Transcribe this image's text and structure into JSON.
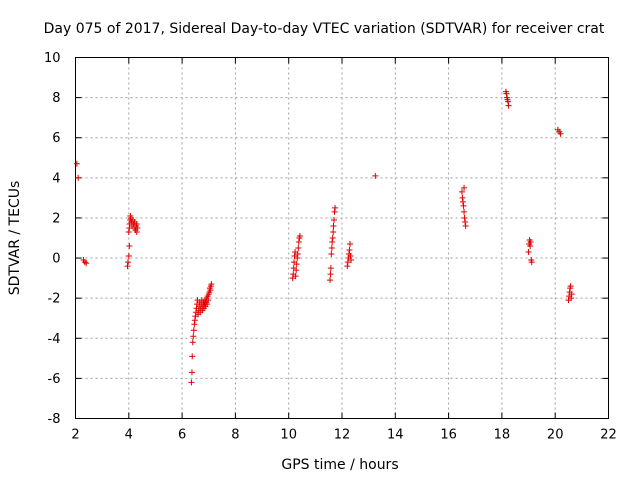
{
  "chart_data": {
    "type": "scatter",
    "title": "Day 075 of 2017, Sidereal Day-to-day VTEC variation (SDTVAR) for receiver crat",
    "xlabel": "GPS time / hours",
    "ylabel": "SDTVAR / TECUs",
    "xlim": [
      2,
      22
    ],
    "ylim": [
      -8,
      10
    ],
    "xticks": [
      2,
      4,
      6,
      8,
      10,
      12,
      14,
      16,
      18,
      20,
      22
    ],
    "yticks": [
      -8,
      -6,
      -4,
      -2,
      0,
      2,
      4,
      6,
      8,
      10
    ],
    "grid": true,
    "marker": "+",
    "series": [
      {
        "name": "SDTVAR",
        "color": "#e00000",
        "points": [
          [
            2.05,
            4.7
          ],
          [
            2.1,
            4.0
          ],
          [
            2.3,
            -0.1
          ],
          [
            2.35,
            -0.2
          ],
          [
            2.4,
            -0.25
          ],
          [
            3.95,
            -0.4
          ],
          [
            3.97,
            -0.2
          ],
          [
            4.0,
            0.1
          ],
          [
            4.02,
            0.6
          ],
          [
            4.0,
            1.3
          ],
          [
            4.02,
            1.5
          ],
          [
            4.03,
            1.7
          ],
          [
            4.05,
            1.9
          ],
          [
            4.06,
            2.1
          ],
          [
            4.08,
            2.0
          ],
          [
            4.1,
            1.8
          ],
          [
            4.12,
            1.6
          ],
          [
            4.15,
            1.9
          ],
          [
            4.18,
            1.7
          ],
          [
            4.2,
            1.5
          ],
          [
            4.22,
            1.8
          ],
          [
            4.25,
            1.4
          ],
          [
            4.27,
            1.6
          ],
          [
            4.3,
            1.3
          ],
          [
            4.3,
            1.7
          ],
          [
            4.32,
            1.5
          ],
          [
            6.35,
            -6.2
          ],
          [
            6.37,
            -5.7
          ],
          [
            6.38,
            -4.9
          ],
          [
            6.4,
            -4.2
          ],
          [
            6.42,
            -3.9
          ],
          [
            6.44,
            -3.6
          ],
          [
            6.46,
            -3.3
          ],
          [
            6.48,
            -3.1
          ],
          [
            6.5,
            -2.9
          ],
          [
            6.52,
            -2.7
          ],
          [
            6.54,
            -2.5
          ],
          [
            6.56,
            -2.3
          ],
          [
            6.58,
            -2.1
          ],
          [
            6.6,
            -2.8
          ],
          [
            6.62,
            -2.6
          ],
          [
            6.64,
            -2.4
          ],
          [
            6.66,
            -2.2
          ],
          [
            6.68,
            -2.7
          ],
          [
            6.7,
            -2.5
          ],
          [
            6.72,
            -2.3
          ],
          [
            6.74,
            -2.1
          ],
          [
            6.76,
            -2.6
          ],
          [
            6.78,
            -2.4
          ],
          [
            6.8,
            -2.2
          ],
          [
            6.82,
            -2.5
          ],
          [
            6.84,
            -2.3
          ],
          [
            6.86,
            -2.1
          ],
          [
            6.88,
            -2.4
          ],
          [
            6.9,
            -2.2
          ],
          [
            6.92,
            -2.0
          ],
          [
            6.94,
            -2.3
          ],
          [
            6.96,
            -1.9
          ],
          [
            6.98,
            -2.1
          ],
          [
            7.0,
            -1.8
          ],
          [
            7.02,
            -1.7
          ],
          [
            7.04,
            -1.5
          ],
          [
            7.06,
            -1.6
          ],
          [
            7.08,
            -1.4
          ],
          [
            7.1,
            -1.3
          ],
          [
            10.15,
            -1.0
          ],
          [
            10.17,
            -0.8
          ],
          [
            10.19,
            -0.5
          ],
          [
            10.2,
            -0.2
          ],
          [
            10.22,
            0.1
          ],
          [
            10.24,
            0.3
          ],
          [
            10.26,
            -0.9
          ],
          [
            10.28,
            -0.6
          ],
          [
            10.3,
            -0.3
          ],
          [
            10.32,
            0.0
          ],
          [
            10.34,
            0.2
          ],
          [
            10.36,
            0.5
          ],
          [
            10.38,
            0.8
          ],
          [
            10.4,
            1.0
          ],
          [
            10.42,
            1.1
          ],
          [
            11.55,
            -1.1
          ],
          [
            11.57,
            -0.8
          ],
          [
            11.58,
            -0.5
          ],
          [
            11.6,
            0.2
          ],
          [
            11.62,
            0.5
          ],
          [
            11.63,
            0.8
          ],
          [
            11.65,
            1.0
          ],
          [
            11.67,
            1.3
          ],
          [
            11.68,
            1.6
          ],
          [
            11.7,
            1.9
          ],
          [
            11.72,
            2.3
          ],
          [
            11.74,
            2.5
          ],
          [
            12.2,
            -0.4
          ],
          [
            12.22,
            -0.2
          ],
          [
            12.24,
            0.0
          ],
          [
            12.26,
            0.2
          ],
          [
            12.28,
            0.4
          ],
          [
            12.3,
            0.7
          ],
          [
            12.32,
            0.1
          ],
          [
            12.34,
            -0.1
          ],
          [
            13.25,
            4.1
          ],
          [
            16.5,
            3.3
          ],
          [
            16.52,
            3.0
          ],
          [
            16.54,
            2.8
          ],
          [
            16.56,
            2.6
          ],
          [
            16.58,
            2.3
          ],
          [
            16.6,
            2.0
          ],
          [
            16.62,
            1.8
          ],
          [
            16.64,
            1.6
          ],
          [
            16.58,
            3.5
          ],
          [
            18.15,
            8.3
          ],
          [
            18.17,
            8.2
          ],
          [
            18.19,
            8.0
          ],
          [
            18.21,
            7.9
          ],
          [
            18.23,
            7.8
          ],
          [
            18.25,
            7.6
          ],
          [
            19.0,
            0.3
          ],
          [
            19.02,
            0.7
          ],
          [
            19.04,
            0.9
          ],
          [
            19.06,
            0.6
          ],
          [
            19.08,
            0.8
          ],
          [
            19.1,
            -0.1
          ],
          [
            19.12,
            -0.2
          ],
          [
            20.1,
            6.4
          ],
          [
            20.15,
            6.3
          ],
          [
            20.2,
            6.2
          ],
          [
            20.5,
            -2.1
          ],
          [
            20.52,
            -1.9
          ],
          [
            20.54,
            -1.7
          ],
          [
            20.56,
            -1.5
          ],
          [
            20.58,
            -1.4
          ],
          [
            20.6,
            -2.0
          ],
          [
            20.62,
            -1.8
          ]
        ]
      }
    ]
  }
}
